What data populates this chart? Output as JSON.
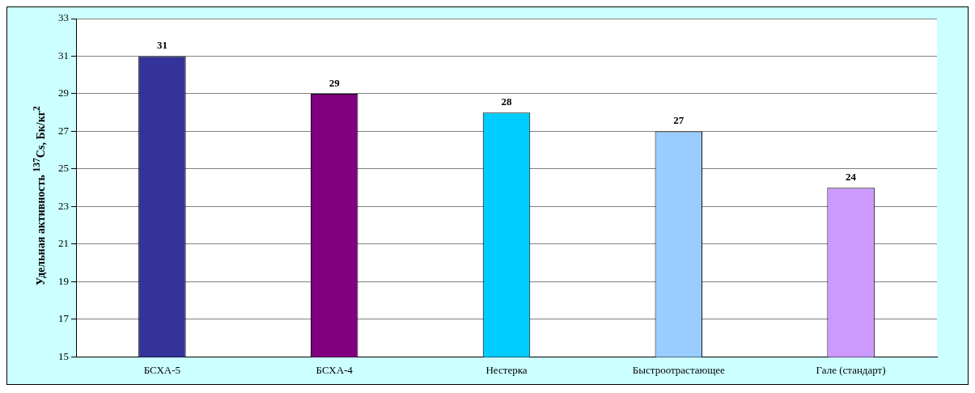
{
  "chart_data": {
    "type": "bar",
    "ylabel": "Удельная активность $^{137}$Cs, Бк/кг$^{2}$",
    "categories": [
      "БСХА-5",
      "БСХА-4",
      "Нестерка",
      "Быстроотрастающее",
      "Гале (стандарт)"
    ],
    "values": [
      31,
      29,
      28,
      27,
      24
    ],
    "colors": [
      "#333399",
      "#800080",
      "#00ccff",
      "#99ccff",
      "#cc99ff"
    ],
    "ylim": [
      15,
      33
    ],
    "yticks": [
      15,
      17,
      19,
      21,
      23,
      25,
      27,
      29,
      31,
      33
    ],
    "grid": "y",
    "legend": false,
    "data_labels": true
  }
}
